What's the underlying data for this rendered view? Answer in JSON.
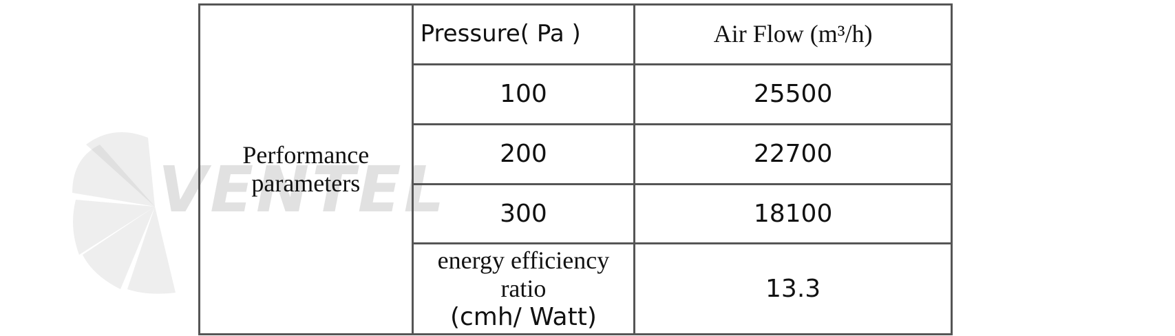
{
  "watermark": "VENTEL",
  "table": {
    "row_header": [
      "Performance",
      "parameters"
    ],
    "header": [
      "Pressure( Pa  )",
      "Air Flow (m³/h)"
    ],
    "rows": [
      [
        100,
        25500
      ],
      [
        200,
        22700
      ],
      [
        300,
        18100
      ]
    ],
    "ratio_label": [
      "energy efficiency ratio",
      "(cmh/ Watt)"
    ],
    "ratio_value": 13.3
  }
}
